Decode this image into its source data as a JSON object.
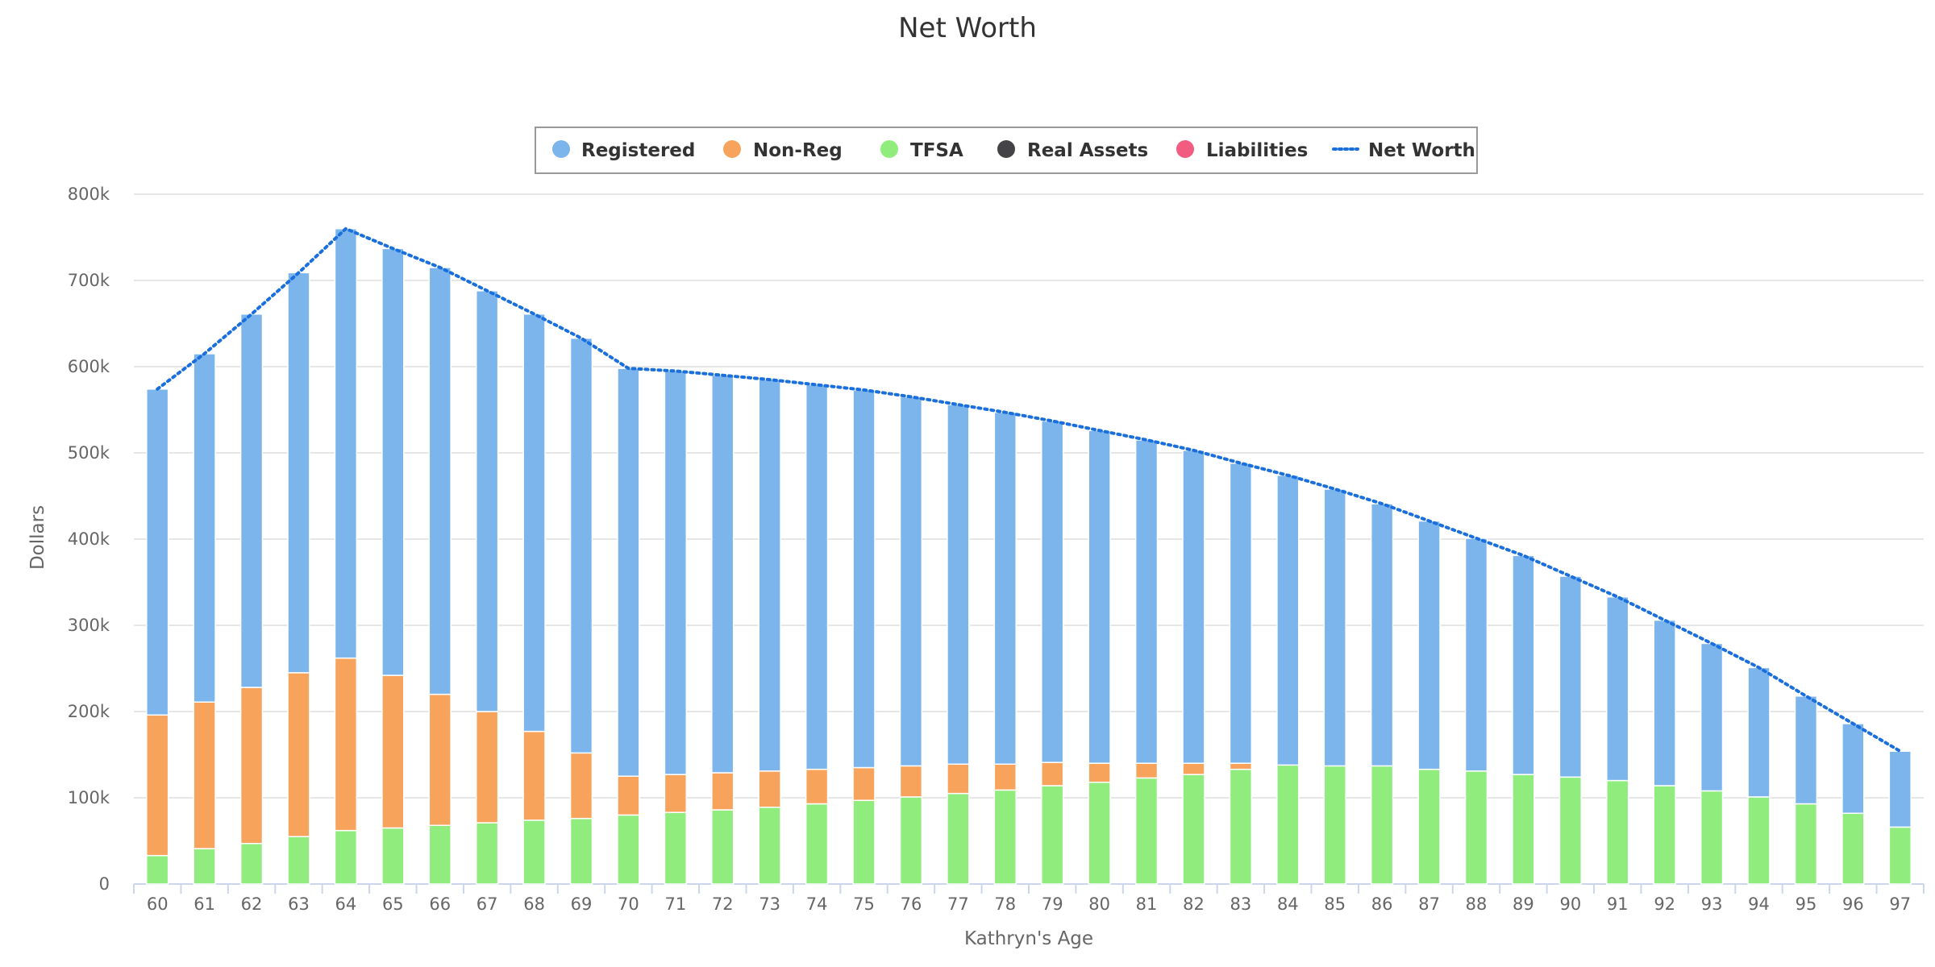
{
  "chart_data": {
    "type": "bar",
    "stacked": true,
    "title": "Net Worth",
    "xlabel": "Kathryn's Age",
    "ylabel": "Dollars",
    "ylim": [
      0,
      800000
    ],
    "yticks": [
      {
        "value": 0,
        "label": "0"
      },
      {
        "value": 100000,
        "label": "100k"
      },
      {
        "value": 200000,
        "label": "200k"
      },
      {
        "value": 300000,
        "label": "300k"
      },
      {
        "value": 400000,
        "label": "400k"
      },
      {
        "value": 500000,
        "label": "500k"
      },
      {
        "value": 600000,
        "label": "600k"
      },
      {
        "value": 700000,
        "label": "700k"
      },
      {
        "value": 800000,
        "label": "800k"
      }
    ],
    "grid": true,
    "legend_position": "top-center",
    "categories": [
      "60",
      "61",
      "62",
      "63",
      "64",
      "65",
      "66",
      "67",
      "68",
      "69",
      "70",
      "71",
      "72",
      "73",
      "74",
      "75",
      "76",
      "77",
      "78",
      "79",
      "80",
      "81",
      "82",
      "83",
      "84",
      "85",
      "86",
      "87",
      "88",
      "89",
      "90",
      "91",
      "92",
      "93",
      "94",
      "95",
      "96",
      "97"
    ],
    "series": [
      {
        "name": "TFSA",
        "color": "#90ed7d",
        "values": [
          33000,
          41000,
          47000,
          55000,
          62000,
          65000,
          68000,
          71000,
          74000,
          76000,
          80000,
          83000,
          86000,
          89000,
          93000,
          97000,
          101000,
          105000,
          109000,
          114000,
          118000,
          123000,
          127000,
          133000,
          138000,
          137000,
          137000,
          133000,
          131000,
          127000,
          124000,
          120000,
          114000,
          108000,
          101000,
          93000,
          82000,
          66000
        ]
      },
      {
        "name": "Non-Reg",
        "color": "#f7a35c",
        "values": [
          163000,
          170000,
          181000,
          190000,
          200000,
          177000,
          152000,
          129000,
          103000,
          76000,
          45000,
          44000,
          43000,
          42000,
          40000,
          38000,
          36000,
          34000,
          30000,
          27000,
          22000,
          17000,
          13000,
          7000,
          0,
          0,
          0,
          0,
          0,
          0,
          0,
          0,
          0,
          0,
          0,
          0,
          0,
          0
        ]
      },
      {
        "name": "Registered",
        "color": "#7cb5ec",
        "values": [
          378000,
          404000,
          433000,
          464000,
          498000,
          495000,
          495000,
          488000,
          484000,
          481000,
          473000,
          468000,
          461000,
          454000,
          446000,
          438000,
          428000,
          417000,
          408000,
          396000,
          386000,
          375000,
          363000,
          348000,
          336000,
          321000,
          304000,
          288000,
          270000,
          254000,
          233000,
          213000,
          192000,
          171000,
          150000,
          125000,
          104000,
          88000
        ]
      }
    ],
    "legend_only_series": [
      {
        "name": "Real Assets",
        "color": "#434348"
      },
      {
        "name": "Liabilities",
        "color": "#f15c80"
      }
    ],
    "line_series": {
      "name": "Net Worth",
      "color": "#1a6fdc",
      "style": "dotted",
      "values": [
        574000,
        615000,
        661000,
        709000,
        760000,
        737000,
        715000,
        688000,
        661000,
        633000,
        598000,
        595000,
        590000,
        585000,
        579000,
        573000,
        565000,
        556000,
        547000,
        537000,
        526000,
        515000,
        503000,
        488000,
        474000,
        458000,
        441000,
        421000,
        401000,
        381000,
        357000,
        333000,
        306000,
        279000,
        251000,
        218000,
        186000,
        154000
      ]
    }
  }
}
